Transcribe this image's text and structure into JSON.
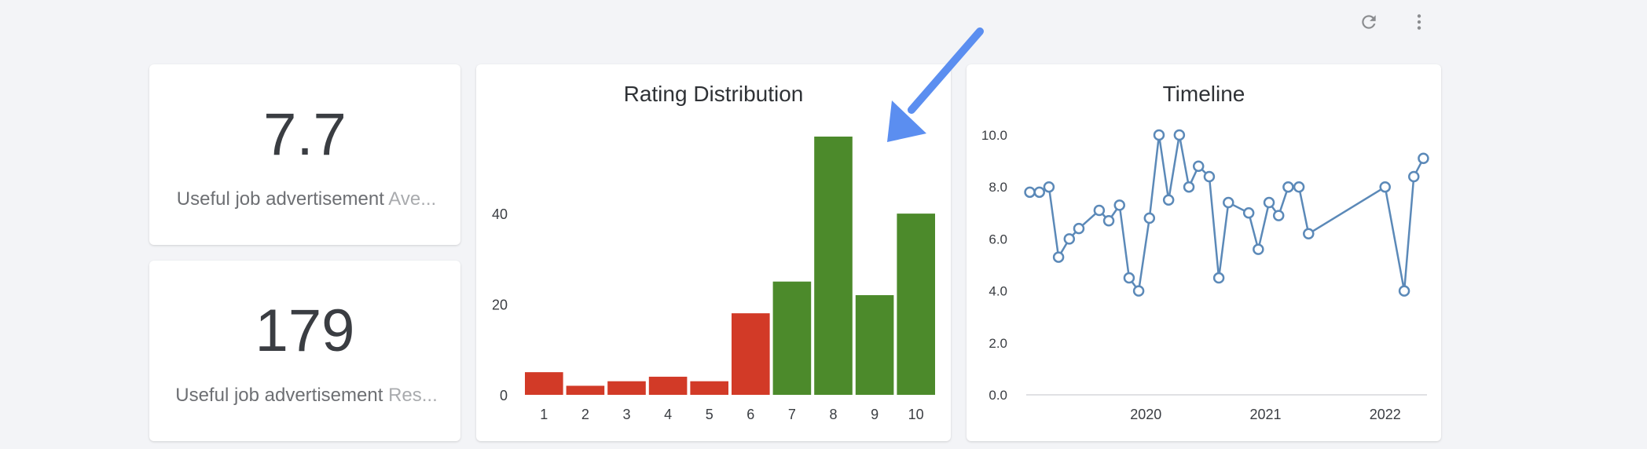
{
  "toolbar": {
    "icons": [
      {
        "name": "refresh-icon"
      },
      {
        "name": "more-vert-icon"
      }
    ],
    "arrow_color": "#5b8ef0"
  },
  "kpis": [
    {
      "value": "7.7",
      "label_main": "Useful job advertisement",
      "label_sub": "Ave..."
    },
    {
      "value": "179",
      "label_main": "Useful job advertisement",
      "label_sub": "Res..."
    }
  ],
  "chart_data": [
    {
      "type": "bar",
      "title": "Rating Distribution",
      "categories": [
        "1",
        "2",
        "3",
        "4",
        "5",
        "6",
        "7",
        "8",
        "9",
        "10"
      ],
      "values": [
        5,
        2,
        3,
        4,
        3,
        18,
        25,
        57,
        22,
        40
      ],
      "colors": [
        "#d23a27",
        "#d23a27",
        "#d23a27",
        "#d23a27",
        "#d23a27",
        "#d23a27",
        "#4c8a2b",
        "#4c8a2b",
        "#4c8a2b",
        "#4c8a2b"
      ],
      "yticks": [
        "0",
        "20",
        "40"
      ],
      "ytick_values": [
        0,
        20,
        40
      ],
      "ylim": [
        0,
        57
      ]
    },
    {
      "type": "line",
      "title": "Timeline",
      "line_color": "#5b89b8",
      "xticks": [
        "2020",
        "2021",
        "2022"
      ],
      "xtick_values": [
        2020,
        2021,
        2022
      ],
      "yticks": [
        "0.0",
        "2.0",
        "4.0",
        "6.0",
        "8.0",
        "10.0"
      ],
      "ytick_values": [
        0,
        2,
        4,
        6,
        8,
        10
      ],
      "xlim": [
        2019.0,
        2022.35
      ],
      "ylim": [
        0,
        10
      ],
      "points": [
        {
          "x": 2019.03,
          "y": 7.8
        },
        {
          "x": 2019.11,
          "y": 7.8
        },
        {
          "x": 2019.19,
          "y": 8.0
        },
        {
          "x": 2019.27,
          "y": 5.3
        },
        {
          "x": 2019.36,
          "y": 6.0
        },
        {
          "x": 2019.44,
          "y": 6.4
        },
        {
          "x": 2019.61,
          "y": 7.1
        },
        {
          "x": 2019.69,
          "y": 6.7
        },
        {
          "x": 2019.78,
          "y": 7.3
        },
        {
          "x": 2019.86,
          "y": 4.5
        },
        {
          "x": 2019.94,
          "y": 4.0
        },
        {
          "x": 2020.03,
          "y": 6.8
        },
        {
          "x": 2020.11,
          "y": 10.0
        },
        {
          "x": 2020.19,
          "y": 7.5
        },
        {
          "x": 2020.28,
          "y": 10.0
        },
        {
          "x": 2020.36,
          "y": 8.0
        },
        {
          "x": 2020.44,
          "y": 8.8
        },
        {
          "x": 2020.53,
          "y": 8.4
        },
        {
          "x": 2020.61,
          "y": 4.5
        },
        {
          "x": 2020.69,
          "y": 7.4
        },
        {
          "x": 2020.86,
          "y": 7.0
        },
        {
          "x": 2020.94,
          "y": 5.6
        },
        {
          "x": 2021.03,
          "y": 7.4
        },
        {
          "x": 2021.11,
          "y": 6.9
        },
        {
          "x": 2021.19,
          "y": 8.0
        },
        {
          "x": 2021.28,
          "y": 8.0
        },
        {
          "x": 2021.36,
          "y": 6.2
        },
        {
          "x": 2022.0,
          "y": 8.0
        },
        {
          "x": 2022.16,
          "y": 4.0
        },
        {
          "x": 2022.24,
          "y": 8.4
        },
        {
          "x": 2022.32,
          "y": 9.1
        }
      ]
    }
  ]
}
